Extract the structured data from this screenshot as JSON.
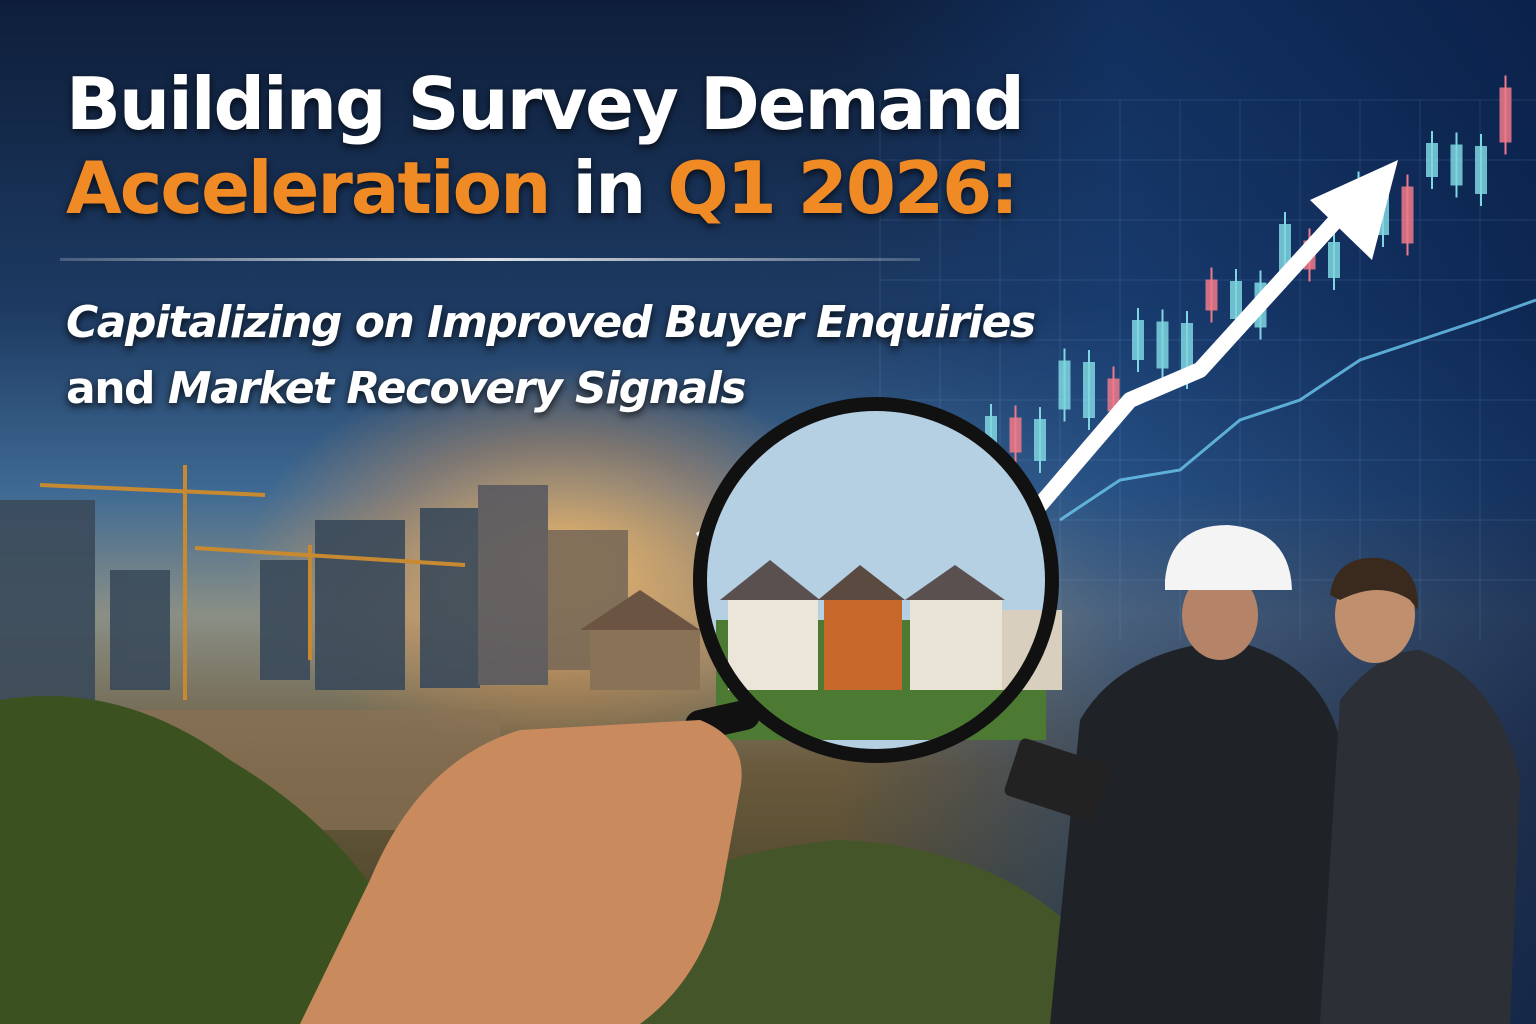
{
  "headline": {
    "line1": "Building Survey Demand",
    "line2_accent": "Acceleration",
    "line2_mid": " in ",
    "line2_accent2": "Q1 2026:",
    "subtitle_line1": "Capitalizing on Improved Buyer Enquiries",
    "subtitle_line2_plain": "and ",
    "subtitle_line2_italic": "Market Recovery Signals"
  },
  "colors": {
    "accent": "#f08a24",
    "title_text": "#ffffff",
    "candle_up": "#7fd6e0",
    "candle_down": "#f07a8a",
    "sky_dark": "#0e1e3a"
  },
  "icons": [
    "magnifying-glass",
    "trend-arrow",
    "candlestick-chart",
    "hard-hat",
    "tablet"
  ]
}
